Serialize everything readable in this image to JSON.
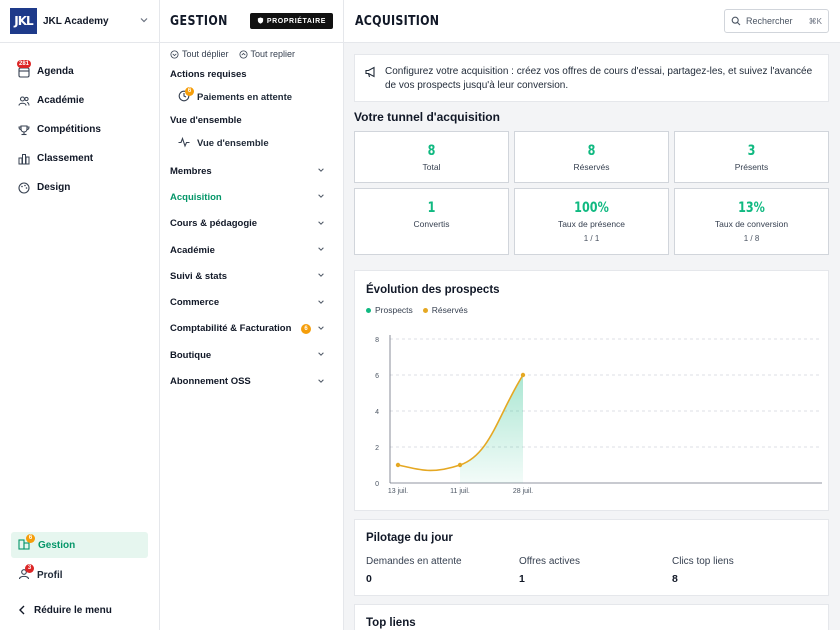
{
  "brand": {
    "logo": "JKL",
    "name": "JKL Academy"
  },
  "nav": {
    "items": [
      {
        "label": "Agenda",
        "icon": "calendar-icon",
        "badge": "281"
      },
      {
        "label": "Académie",
        "icon": "users-icon"
      },
      {
        "label": "Compétitions",
        "icon": "trophy-icon"
      },
      {
        "label": "Classement",
        "icon": "chart-bars-icon"
      },
      {
        "label": "Design",
        "icon": "palette-icon"
      }
    ],
    "gestion": {
      "label": "Gestion",
      "badge": "6"
    },
    "profil": {
      "label": "Profil",
      "badge": "3"
    },
    "reduce": "Réduire le menu"
  },
  "panel": {
    "title": "GESTION",
    "owner_badge": "PROPRIÉTAIRE",
    "expand_all": "Tout déplier",
    "collapse_all": "Tout replier",
    "actions_label": "Actions requises",
    "actions_item": {
      "label": "Paiements en attente",
      "badge": "6"
    },
    "overview_label": "Vue d'ensemble",
    "overview_item": "Vue d'ensemble",
    "groups": [
      {
        "label": "Membres"
      },
      {
        "label": "Acquisition"
      },
      {
        "label": "Cours & pédagogie"
      },
      {
        "label": "Académie"
      },
      {
        "label": "Suivi & stats"
      },
      {
        "label": "Commerce"
      },
      {
        "label": "Comptabilité & Facturation",
        "badge": "6"
      },
      {
        "label": "Boutique"
      },
      {
        "label": "Abonnement OSS"
      }
    ]
  },
  "main": {
    "title": "ACQUISITION",
    "search_placeholder": "Rechercher",
    "search_shortcut": "⌘K",
    "banner": "Configurez votre acquisition : créez vos offres de cours d'essai, partagez-les, et suivez l'avancée de vos prospects jusqu'à leur conversion.",
    "tunnel_title": "Votre tunnel d'acquisition",
    "stats": [
      {
        "value": "8",
        "label": "Total",
        "sub": ""
      },
      {
        "value": "8",
        "label": "Réservés",
        "sub": ""
      },
      {
        "value": "3",
        "label": "Présents",
        "sub": ""
      },
      {
        "value": "1",
        "label": "Convertis",
        "sub": ""
      },
      {
        "value": "100%",
        "label": "Taux de présence",
        "sub": "1 / 1"
      },
      {
        "value": "13%",
        "label": "Taux de conversion",
        "sub": "1 / 8"
      }
    ],
    "chart_title": "Évolution des prospects",
    "pilot": {
      "title": "Pilotage du jour",
      "cols": [
        {
          "label": "Demandes en attente",
          "value": "0"
        },
        {
          "label": "Offres actives",
          "value": "1"
        },
        {
          "label": "Clics top liens",
          "value": "8"
        }
      ]
    },
    "top_links_title": "Top liens"
  },
  "colors": {
    "accent": "#10b981",
    "prospects": "#10b981",
    "reserves": "#e5a823"
  },
  "chart_data": {
    "type": "line",
    "title": "Évolution des prospects",
    "categories": [
      "13 juil.",
      "11 juil.",
      "28 juil."
    ],
    "ylim": [
      0,
      8
    ],
    "yticks": [
      "0",
      "2",
      "4",
      "6",
      "8"
    ],
    "grid": true,
    "legend": "top-left",
    "series": [
      {
        "name": "Prospects",
        "values": [
          1,
          1,
          6
        ],
        "style": "area"
      },
      {
        "name": "Réservés",
        "values": [
          1,
          1,
          6
        ],
        "style": "line"
      }
    ]
  }
}
